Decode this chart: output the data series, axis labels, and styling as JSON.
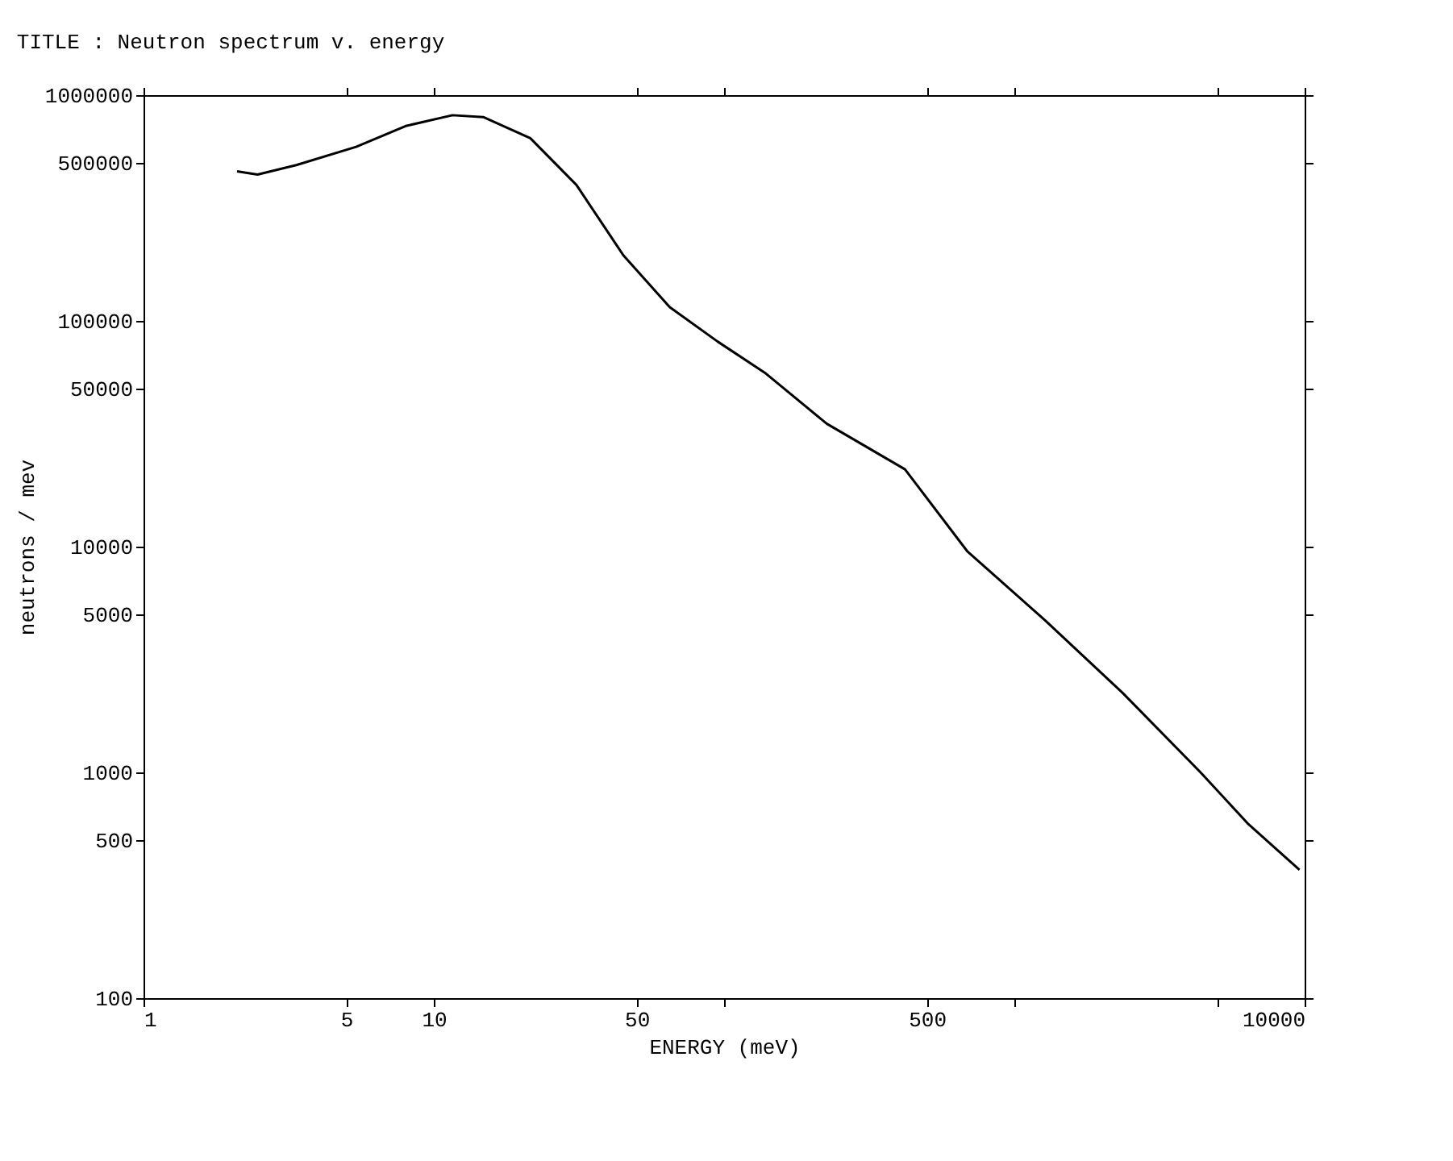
{
  "chart_data": {
    "type": "line",
    "title": "TITLE : Neutron spectrum v. energy",
    "xlabel": "ENERGY (meV)",
    "ylabel": "neutrons / mev",
    "log": "xy",
    "grid": false,
    "marker": "none",
    "line_style": "solid",
    "xlim": [
      1,
      10000
    ],
    "xticks": [
      1,
      5,
      10,
      50,
      {
        "value": 100,
        "label": null
      },
      500,
      {
        "value": 1000,
        "label": null
      },
      {
        "value": 5000,
        "label": null
      },
      10000
    ],
    "ylim": [
      100,
      1000000
    ],
    "yticks": [
      100,
      500,
      1000,
      5000,
      10000,
      50000,
      100000,
      500000,
      1000000
    ],
    "series": [
      {
        "color": "#000000",
        "x": [
          2.1,
          2.47,
          3.36,
          5.4,
          8.0,
          11.6,
          14.8,
          21.5,
          31,
          45,
          65,
          95,
          138,
          226,
          420,
          690,
          1280,
          2360,
          4380,
          6400,
          9600
        ],
        "values": [
          460000,
          445000,
          490000,
          590000,
          730000,
          815000,
          800000,
          645000,
          400000,
          195000,
          115000,
          81000,
          59000,
          35000,
          22000,
          9500,
          4700,
          2250,
          1000,
          590,
          370
        ]
      }
    ]
  }
}
